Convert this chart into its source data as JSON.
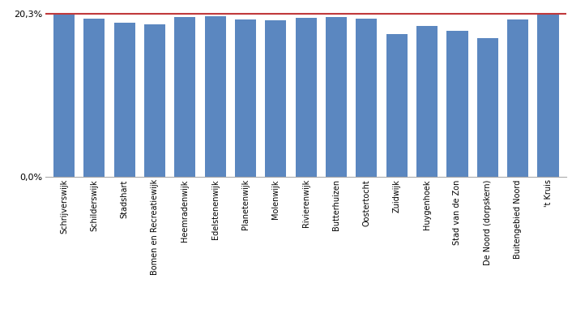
{
  "categories": [
    "Schrijverswijk",
    "Schilderswijk",
    "Stadshart",
    "Bomen en Recreatiewijk",
    "Heemradenwijk",
    "Edelstenenwijk",
    "Planetenwijk",
    "Molenwijk",
    "Rivierenwijk",
    "Butterhuizen",
    "Oostertocht",
    "Zuidwijk",
    "Huygenhoek",
    "Stad van de Zon",
    "De Noord (dorpskern)",
    "Buitengebied Noord",
    "'t Kruis"
  ],
  "values": [
    20.3,
    19.7,
    19.2,
    19.0,
    19.9,
    20.0,
    19.6,
    19.5,
    19.8,
    19.9,
    19.7,
    17.8,
    18.8,
    18.2,
    17.3,
    19.6,
    20.3
  ],
  "bar_color": "#5b87c0",
  "reference_line": 20.3,
  "reference_line_color": "#c0393b",
  "y_tick_labels": [
    "0,0%",
    "20,3%"
  ],
  "y_tick_values": [
    0.0,
    20.3
  ],
  "ylim": [
    0,
    20.8
  ],
  "background_color": "#ffffff",
  "fig_width": 7.06,
  "fig_height": 3.97,
  "dpi": 100
}
